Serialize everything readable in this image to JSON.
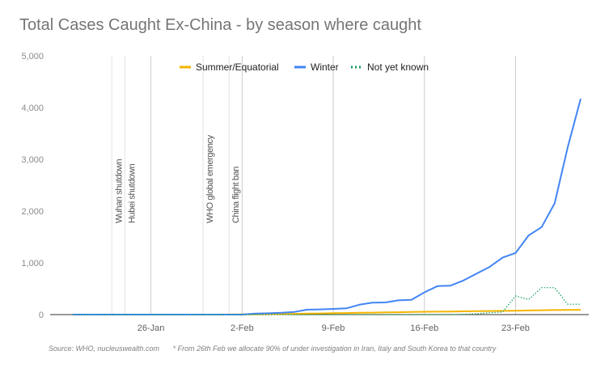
{
  "chart_data": {
    "type": "line",
    "title": "Total Cases Caught Ex-China - by season where caught",
    "xlabel": "",
    "ylabel": "",
    "ylim": [
      0,
      5000
    ],
    "yticks": [
      0,
      1000,
      2000,
      3000,
      4000,
      5000
    ],
    "ytick_labels": [
      "0",
      "1,000",
      "2,000",
      "3,000",
      "4,000",
      "5,000"
    ],
    "x_dates": [
      "20-Jan",
      "21-Jan",
      "22-Jan",
      "23-Jan",
      "24-Jan",
      "25-Jan",
      "26-Jan",
      "27-Jan",
      "28-Jan",
      "29-Jan",
      "30-Jan",
      "31-Jan",
      "1-Feb",
      "2-Feb",
      "3-Feb",
      "4-Feb",
      "5-Feb",
      "6-Feb",
      "7-Feb",
      "8-Feb",
      "9-Feb",
      "10-Feb",
      "11-Feb",
      "12-Feb",
      "13-Feb",
      "14-Feb",
      "15-Feb",
      "16-Feb",
      "17-Feb",
      "18-Feb",
      "19-Feb",
      "20-Feb",
      "21-Feb",
      "22-Feb",
      "23-Feb",
      "24-Feb",
      "25-Feb",
      "26-Feb",
      "27-Feb",
      "28-Feb"
    ],
    "xtick_labels": [
      "26-Jan",
      "2-Feb",
      "9-Feb",
      "16-Feb",
      "23-Feb"
    ],
    "legend_position": "top",
    "grid": "vertical lines at weekly ticks and event markers",
    "series": [
      {
        "name": "Summer/Equatorial",
        "color": "#f4b400",
        "style": "solid",
        "values": [
          0,
          0,
          0,
          0,
          0,
          0,
          0,
          0,
          0,
          0,
          0,
          0,
          2,
          3,
          5,
          7,
          10,
          14,
          18,
          22,
          26,
          30,
          34,
          38,
          42,
          46,
          50,
          54,
          57,
          60,
          63,
          66,
          69,
          72,
          75,
          80,
          85,
          88,
          90,
          92
        ]
      },
      {
        "name": "Winter",
        "color": "#4285f4",
        "style": "solid",
        "values": [
          0,
          0,
          0,
          0,
          0,
          0,
          0,
          0,
          0,
          0,
          0,
          0,
          0,
          0,
          20,
          25,
          35,
          50,
          95,
          100,
          110,
          120,
          190,
          230,
          235,
          275,
          285,
          430,
          550,
          560,
          660,
          790,
          920,
          1100,
          1190,
          1530,
          1690,
          2150,
          3230,
          4170
        ]
      },
      {
        "name": "Not yet known",
        "color": "#0f9d58",
        "style": "dotted",
        "values": [
          0,
          0,
          0,
          0,
          0,
          0,
          0,
          0,
          0,
          0,
          0,
          0,
          0,
          0,
          0,
          0,
          0,
          0,
          0,
          0,
          0,
          0,
          0,
          0,
          0,
          0,
          0,
          0,
          0,
          0,
          5,
          15,
          35,
          50,
          360,
          290,
          520,
          520,
          200,
          200
        ]
      }
    ],
    "annotations": [
      "Wuhan shutdown",
      "Hubei shutdown",
      "WHO global emergency",
      "China flight ban"
    ],
    "annotation_dates": [
      "23-Jan",
      "24-Jan",
      "30-Jan",
      "1-Feb"
    ]
  },
  "footnote": {
    "source": "Source: WHO, nucleuswealth.com",
    "note": "* From 26th Feb we allocate 90% of under investigation in Iran, Italy and South Korea to that country"
  }
}
